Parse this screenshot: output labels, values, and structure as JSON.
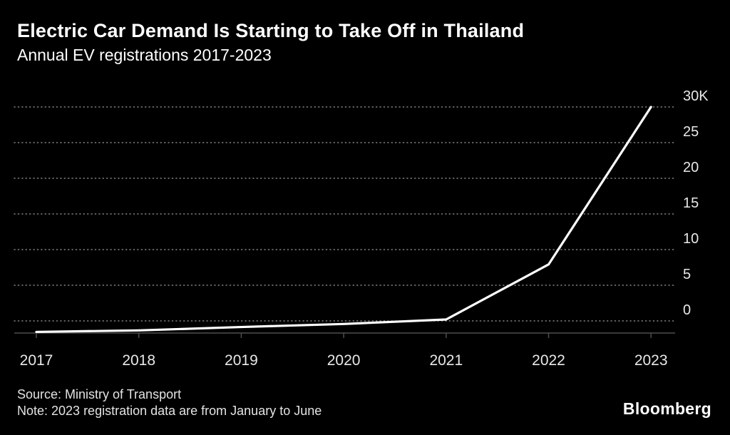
{
  "header": {
    "title": "Electric Car Demand Is Starting to Take Off in Thailand",
    "subtitle": "Annual EV registrations 2017-2023"
  },
  "chart_data": {
    "type": "line",
    "title": "Electric Car Demand Is Starting to Take Off in Thailand",
    "subtitle": "Annual EV registrations 2017-2023",
    "categories": [
      "2017",
      "2018",
      "2019",
      "2020",
      "2021",
      "2022",
      "2023"
    ],
    "series": [
      {
        "name": "Annual EV registrations",
        "values": [
          150,
          350,
          800,
          1200,
          1800,
          9100,
          30000
        ]
      }
    ],
    "ylim": [
      0,
      30000
    ],
    "y_ticks": [
      {
        "value": 0,
        "label": "0"
      },
      {
        "value": 5000,
        "label": "5"
      },
      {
        "value": 10000,
        "label": "10"
      },
      {
        "value": 15000,
        "label": "15"
      },
      {
        "value": 20000,
        "label": "20"
      },
      {
        "value": 25000,
        "label": "25"
      },
      {
        "value": 30000,
        "label": "30K"
      }
    ],
    "grid": "dotted-horizontal",
    "legend": "none",
    "line_color": "#ffffff",
    "background_color": "#000000"
  },
  "footer": {
    "source": "Source: Ministry of Transport",
    "note": "Note: 2023 registration data are from January to June",
    "brand": "Bloomberg"
  }
}
